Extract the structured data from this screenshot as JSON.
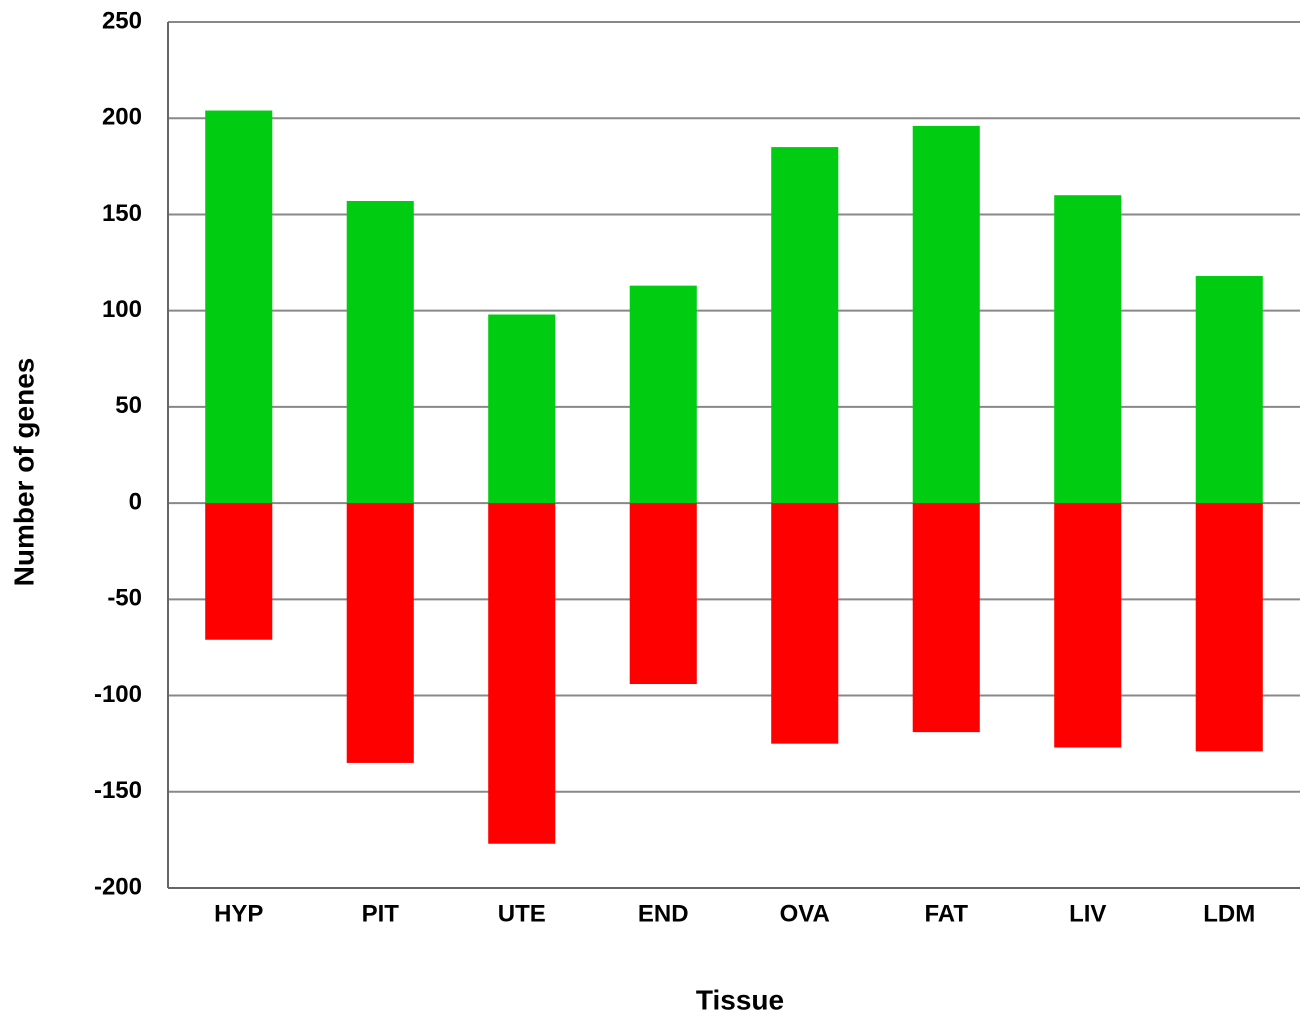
{
  "chart_data": {
    "type": "bar",
    "x_label": "Tissue",
    "y_label": "Number of genes",
    "categories": [
      "HYP",
      "PIT",
      "UTE",
      "END",
      "OVA",
      "FAT",
      "LIV",
      "LDM"
    ],
    "series": [
      {
        "color": "#00cc11",
        "values": [
          204,
          157,
          98,
          113,
          185,
          196,
          160,
          118
        ]
      },
      {
        "color": "#ff0000",
        "values": [
          -71,
          -135,
          -177,
          -94,
          -125,
          -119,
          -127,
          -129
        ]
      }
    ],
    "ylim": [
      -200,
      250
    ],
    "yticks": [
      -200,
      -150,
      -100,
      -50,
      0,
      50,
      100,
      150,
      200,
      250
    ],
    "grid": true
  }
}
